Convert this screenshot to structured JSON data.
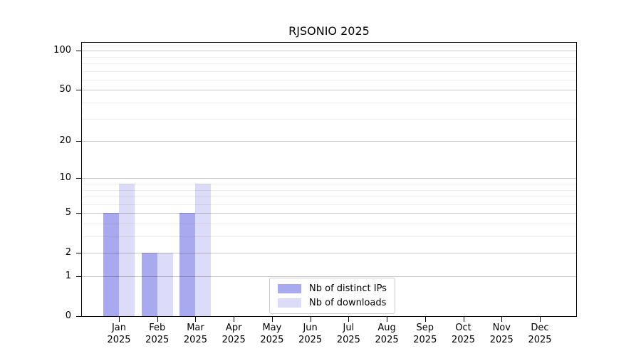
{
  "chart_data": {
    "type": "bar",
    "title": "RJSONIO 2025",
    "year": "2025",
    "categories": [
      "Jan",
      "Feb",
      "Mar",
      "Apr",
      "May",
      "Jun",
      "Jul",
      "Aug",
      "Sep",
      "Oct",
      "Nov",
      "Dec"
    ],
    "series": [
      {
        "name": "Nb of distinct IPs",
        "color": "#a9a9f0",
        "values": [
          5,
          2,
          5,
          0,
          0,
          0,
          0,
          0,
          0,
          0,
          0,
          0
        ]
      },
      {
        "name": "Nb of downloads",
        "color": "#dcdcf8",
        "values": [
          9,
          2,
          9,
          0,
          0,
          0,
          0,
          0,
          0,
          0,
          0,
          0
        ]
      }
    ],
    "yscale": "log1p",
    "ylim": [
      0,
      115
    ],
    "yticks_major": [
      0,
      1,
      2,
      5,
      10,
      20,
      50,
      100
    ],
    "yticks_minor": [
      3,
      4,
      6,
      7,
      8,
      9,
      30,
      40,
      60,
      70,
      80,
      90,
      110
    ],
    "grid": "on",
    "gridline_major_color": "#c6c6c6",
    "gridline_minor_color": "#ededed",
    "axis_color": "#000000",
    "legend_position": "lower center"
  }
}
